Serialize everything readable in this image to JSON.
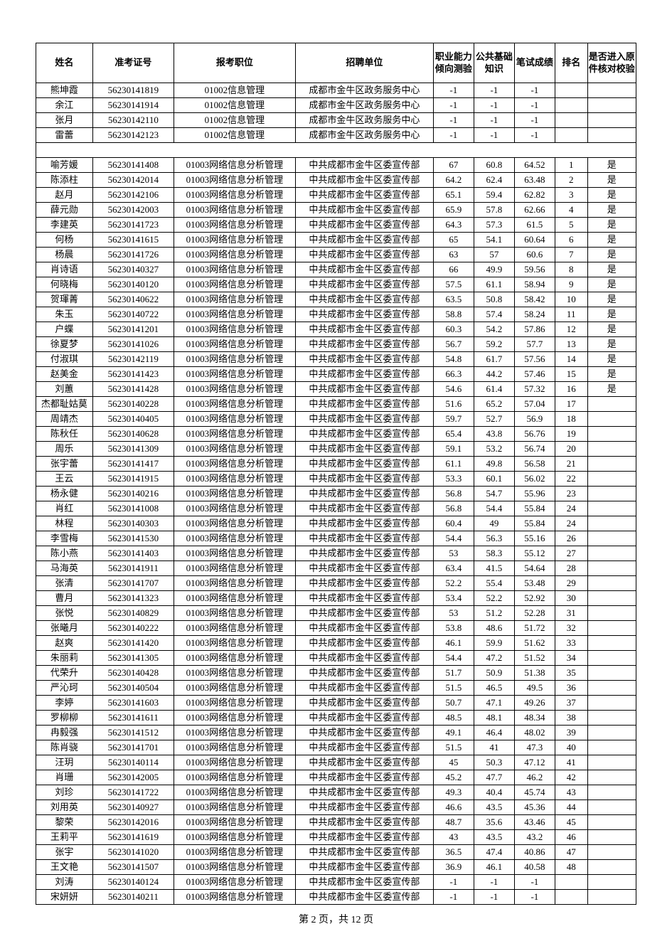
{
  "columns": [
    {
      "key": "name",
      "label": "姓名",
      "cls": "col-name"
    },
    {
      "key": "id",
      "label": "准考证号",
      "cls": "col-id"
    },
    {
      "key": "pos",
      "label": "报考职位",
      "cls": "col-pos"
    },
    {
      "key": "unit",
      "label": "招聘单位",
      "cls": "col-unit"
    },
    {
      "key": "s1",
      "label": "职业能力倾向测验",
      "cls": "col-s1"
    },
    {
      "key": "s2",
      "label": "公共基础知识",
      "cls": "col-s2"
    },
    {
      "key": "s3",
      "label": "笔试成绩",
      "cls": "col-s3"
    },
    {
      "key": "rank",
      "label": "排名",
      "cls": "col-rank"
    },
    {
      "key": "pass",
      "label": "是否进入原件核对校验",
      "cls": "col-pass"
    }
  ],
  "rows": [
    {
      "name": "熊坤霞",
      "id": "56230141819",
      "pos": "01002信息管理",
      "unit": "成都市金牛区政务服务中心",
      "s1": "-1",
      "s2": "-1",
      "s3": "-1",
      "rank": "",
      "pass": ""
    },
    {
      "name": "余江",
      "id": "56230141914",
      "pos": "01002信息管理",
      "unit": "成都市金牛区政务服务中心",
      "s1": "-1",
      "s2": "-1",
      "s3": "-1",
      "rank": "",
      "pass": ""
    },
    {
      "name": "张月",
      "id": "56230142110",
      "pos": "01002信息管理",
      "unit": "成都市金牛区政务服务中心",
      "s1": "-1",
      "s2": "-1",
      "s3": "-1",
      "rank": "",
      "pass": ""
    },
    {
      "name": "雷蕾",
      "id": "56230142123",
      "pos": "01002信息管理",
      "unit": "成都市金牛区政务服务中心",
      "s1": "-1",
      "s2": "-1",
      "s3": "-1",
      "rank": "",
      "pass": ""
    },
    {
      "blank": true
    },
    {
      "name": "喻芳媛",
      "id": "56230141408",
      "pos": "01003网络信息分析管理",
      "unit": "中共成都市金牛区委宣传部",
      "s1": "67",
      "s2": "60.8",
      "s3": "64.52",
      "rank": "1",
      "pass": "是"
    },
    {
      "name": "陈添柱",
      "id": "56230142014",
      "pos": "01003网络信息分析管理",
      "unit": "中共成都市金牛区委宣传部",
      "s1": "64.2",
      "s2": "62.4",
      "s3": "63.48",
      "rank": "2",
      "pass": "是"
    },
    {
      "name": "赵月",
      "id": "56230142106",
      "pos": "01003网络信息分析管理",
      "unit": "中共成都市金牛区委宣传部",
      "s1": "65.1",
      "s2": "59.4",
      "s3": "62.82",
      "rank": "3",
      "pass": "是"
    },
    {
      "name": "薛元勋",
      "id": "56230142003",
      "pos": "01003网络信息分析管理",
      "unit": "中共成都市金牛区委宣传部",
      "s1": "65.9",
      "s2": "57.8",
      "s3": "62.66",
      "rank": "4",
      "pass": "是"
    },
    {
      "name": "李建英",
      "id": "56230141723",
      "pos": "01003网络信息分析管理",
      "unit": "中共成都市金牛区委宣传部",
      "s1": "64.3",
      "s2": "57.3",
      "s3": "61.5",
      "rank": "5",
      "pass": "是"
    },
    {
      "name": "何杨",
      "id": "56230141615",
      "pos": "01003网络信息分析管理",
      "unit": "中共成都市金牛区委宣传部",
      "s1": "65",
      "s2": "54.1",
      "s3": "60.64",
      "rank": "6",
      "pass": "是"
    },
    {
      "name": "杨晨",
      "id": "56230141726",
      "pos": "01003网络信息分析管理",
      "unit": "中共成都市金牛区委宣传部",
      "s1": "63",
      "s2": "57",
      "s3": "60.6",
      "rank": "7",
      "pass": "是"
    },
    {
      "name": "肖诗语",
      "id": "56230140327",
      "pos": "01003网络信息分析管理",
      "unit": "中共成都市金牛区委宣传部",
      "s1": "66",
      "s2": "49.9",
      "s3": "59.56",
      "rank": "8",
      "pass": "是"
    },
    {
      "name": "何晓梅",
      "id": "56230140120",
      "pos": "01003网络信息分析管理",
      "unit": "中共成都市金牛区委宣传部",
      "s1": "57.5",
      "s2": "61.1",
      "s3": "58.94",
      "rank": "9",
      "pass": "是"
    },
    {
      "name": "贺琿菁",
      "id": "56230140622",
      "pos": "01003网络信息分析管理",
      "unit": "中共成都市金牛区委宣传部",
      "s1": "63.5",
      "s2": "50.8",
      "s3": "58.42",
      "rank": "10",
      "pass": "是"
    },
    {
      "name": "朱玉",
      "id": "56230140722",
      "pos": "01003网络信息分析管理",
      "unit": "中共成都市金牛区委宣传部",
      "s1": "58.8",
      "s2": "57.4",
      "s3": "58.24",
      "rank": "11",
      "pass": "是"
    },
    {
      "name": "户蝶",
      "id": "56230141201",
      "pos": "01003网络信息分析管理",
      "unit": "中共成都市金牛区委宣传部",
      "s1": "60.3",
      "s2": "54.2",
      "s3": "57.86",
      "rank": "12",
      "pass": "是"
    },
    {
      "name": "徐夏梦",
      "id": "56230141026",
      "pos": "01003网络信息分析管理",
      "unit": "中共成都市金牛区委宣传部",
      "s1": "56.7",
      "s2": "59.2",
      "s3": "57.7",
      "rank": "13",
      "pass": "是"
    },
    {
      "name": "付淑琪",
      "id": "56230142119",
      "pos": "01003网络信息分析管理",
      "unit": "中共成都市金牛区委宣传部",
      "s1": "54.8",
      "s2": "61.7",
      "s3": "57.56",
      "rank": "14",
      "pass": "是"
    },
    {
      "name": "赵美金",
      "id": "56230141423",
      "pos": "01003网络信息分析管理",
      "unit": "中共成都市金牛区委宣传部",
      "s1": "66.3",
      "s2": "44.2",
      "s3": "57.46",
      "rank": "15",
      "pass": "是"
    },
    {
      "name": "刘蕙",
      "id": "56230141428",
      "pos": "01003网络信息分析管理",
      "unit": "中共成都市金牛区委宣传部",
      "s1": "54.6",
      "s2": "61.4",
      "s3": "57.32",
      "rank": "16",
      "pass": "是"
    },
    {
      "name": "杰都耻姑莫",
      "id": "56230140228",
      "pos": "01003网络信息分析管理",
      "unit": "中共成都市金牛区委宣传部",
      "s1": "51.6",
      "s2": "65.2",
      "s3": "57.04",
      "rank": "17",
      "pass": ""
    },
    {
      "name": "周靖杰",
      "id": "56230140405",
      "pos": "01003网络信息分析管理",
      "unit": "中共成都市金牛区委宣传部",
      "s1": "59.7",
      "s2": "52.7",
      "s3": "56.9",
      "rank": "18",
      "pass": ""
    },
    {
      "name": "陈秋任",
      "id": "56230140628",
      "pos": "01003网络信息分析管理",
      "unit": "中共成都市金牛区委宣传部",
      "s1": "65.4",
      "s2": "43.8",
      "s3": "56.76",
      "rank": "19",
      "pass": ""
    },
    {
      "name": "周乐",
      "id": "56230141309",
      "pos": "01003网络信息分析管理",
      "unit": "中共成都市金牛区委宣传部",
      "s1": "59.1",
      "s2": "53.2",
      "s3": "56.74",
      "rank": "20",
      "pass": ""
    },
    {
      "name": "张宇蕾",
      "id": "56230141417",
      "pos": "01003网络信息分析管理",
      "unit": "中共成都市金牛区委宣传部",
      "s1": "61.1",
      "s2": "49.8",
      "s3": "56.58",
      "rank": "21",
      "pass": ""
    },
    {
      "name": "王云",
      "id": "56230141915",
      "pos": "01003网络信息分析管理",
      "unit": "中共成都市金牛区委宣传部",
      "s1": "53.3",
      "s2": "60.1",
      "s3": "56.02",
      "rank": "22",
      "pass": ""
    },
    {
      "name": "杨永健",
      "id": "56230140216",
      "pos": "01003网络信息分析管理",
      "unit": "中共成都市金牛区委宣传部",
      "s1": "56.8",
      "s2": "54.7",
      "s3": "55.96",
      "rank": "23",
      "pass": ""
    },
    {
      "name": "肖红",
      "id": "56230141008",
      "pos": "01003网络信息分析管理",
      "unit": "中共成都市金牛区委宣传部",
      "s1": "56.8",
      "s2": "54.4",
      "s3": "55.84",
      "rank": "24",
      "pass": ""
    },
    {
      "name": "林程",
      "id": "56230140303",
      "pos": "01003网络信息分析管理",
      "unit": "中共成都市金牛区委宣传部",
      "s1": "60.4",
      "s2": "49",
      "s3": "55.84",
      "rank": "24",
      "pass": ""
    },
    {
      "name": "李雪梅",
      "id": "56230141530",
      "pos": "01003网络信息分析管理",
      "unit": "中共成都市金牛区委宣传部",
      "s1": "54.4",
      "s2": "56.3",
      "s3": "55.16",
      "rank": "26",
      "pass": ""
    },
    {
      "name": "陈小燕",
      "id": "56230141403",
      "pos": "01003网络信息分析管理",
      "unit": "中共成都市金牛区委宣传部",
      "s1": "53",
      "s2": "58.3",
      "s3": "55.12",
      "rank": "27",
      "pass": ""
    },
    {
      "name": "马海英",
      "id": "56230141911",
      "pos": "01003网络信息分析管理",
      "unit": "中共成都市金牛区委宣传部",
      "s1": "63.4",
      "s2": "41.5",
      "s3": "54.64",
      "rank": "28",
      "pass": ""
    },
    {
      "name": "张清",
      "id": "56230141707",
      "pos": "01003网络信息分析管理",
      "unit": "中共成都市金牛区委宣传部",
      "s1": "52.2",
      "s2": "55.4",
      "s3": "53.48",
      "rank": "29",
      "pass": ""
    },
    {
      "name": "曹月",
      "id": "56230141323",
      "pos": "01003网络信息分析管理",
      "unit": "中共成都市金牛区委宣传部",
      "s1": "53.4",
      "s2": "52.2",
      "s3": "52.92",
      "rank": "30",
      "pass": ""
    },
    {
      "name": "张悦",
      "id": "56230140829",
      "pos": "01003网络信息分析管理",
      "unit": "中共成都市金牛区委宣传部",
      "s1": "53",
      "s2": "51.2",
      "s3": "52.28",
      "rank": "31",
      "pass": ""
    },
    {
      "name": "张曦月",
      "id": "56230140222",
      "pos": "01003网络信息分析管理",
      "unit": "中共成都市金牛区委宣传部",
      "s1": "53.8",
      "s2": "48.6",
      "s3": "51.72",
      "rank": "32",
      "pass": ""
    },
    {
      "name": "赵爽",
      "id": "56230141420",
      "pos": "01003网络信息分析管理",
      "unit": "中共成都市金牛区委宣传部",
      "s1": "46.1",
      "s2": "59.9",
      "s3": "51.62",
      "rank": "33",
      "pass": ""
    },
    {
      "name": "朱丽莉",
      "id": "56230141305",
      "pos": "01003网络信息分析管理",
      "unit": "中共成都市金牛区委宣传部",
      "s1": "54.4",
      "s2": "47.2",
      "s3": "51.52",
      "rank": "34",
      "pass": ""
    },
    {
      "name": "代荣升",
      "id": "56230140428",
      "pos": "01003网络信息分析管理",
      "unit": "中共成都市金牛区委宣传部",
      "s1": "51.7",
      "s2": "50.9",
      "s3": "51.38",
      "rank": "35",
      "pass": ""
    },
    {
      "name": "严沁珂",
      "id": "56230140504",
      "pos": "01003网络信息分析管理",
      "unit": "中共成都市金牛区委宣传部",
      "s1": "51.5",
      "s2": "46.5",
      "s3": "49.5",
      "rank": "36",
      "pass": ""
    },
    {
      "name": "李婷",
      "id": "56230141603",
      "pos": "01003网络信息分析管理",
      "unit": "中共成都市金牛区委宣传部",
      "s1": "50.7",
      "s2": "47.1",
      "s3": "49.26",
      "rank": "37",
      "pass": ""
    },
    {
      "name": "罗柳柳",
      "id": "56230141611",
      "pos": "01003网络信息分析管理",
      "unit": "中共成都市金牛区委宣传部",
      "s1": "48.5",
      "s2": "48.1",
      "s3": "48.34",
      "rank": "38",
      "pass": ""
    },
    {
      "name": "冉毅强",
      "id": "56230141512",
      "pos": "01003网络信息分析管理",
      "unit": "中共成都市金牛区委宣传部",
      "s1": "49.1",
      "s2": "46.4",
      "s3": "48.02",
      "rank": "39",
      "pass": ""
    },
    {
      "name": "陈肖骁",
      "id": "56230141701",
      "pos": "01003网络信息分析管理",
      "unit": "中共成都市金牛区委宣传部",
      "s1": "51.5",
      "s2": "41",
      "s3": "47.3",
      "rank": "40",
      "pass": ""
    },
    {
      "name": "汪玥",
      "id": "56230140114",
      "pos": "01003网络信息分析管理",
      "unit": "中共成都市金牛区委宣传部",
      "s1": "45",
      "s2": "50.3",
      "s3": "47.12",
      "rank": "41",
      "pass": ""
    },
    {
      "name": "肖珊",
      "id": "56230142005",
      "pos": "01003网络信息分析管理",
      "unit": "中共成都市金牛区委宣传部",
      "s1": "45.2",
      "s2": "47.7",
      "s3": "46.2",
      "rank": "42",
      "pass": ""
    },
    {
      "name": "刘珍",
      "id": "56230141722",
      "pos": "01003网络信息分析管理",
      "unit": "中共成都市金牛区委宣传部",
      "s1": "49.3",
      "s2": "40.4",
      "s3": "45.74",
      "rank": "43",
      "pass": ""
    },
    {
      "name": "刘用英",
      "id": "56230140927",
      "pos": "01003网络信息分析管理",
      "unit": "中共成都市金牛区委宣传部",
      "s1": "46.6",
      "s2": "43.5",
      "s3": "45.36",
      "rank": "44",
      "pass": ""
    },
    {
      "name": "黎荣",
      "id": "56230142016",
      "pos": "01003网络信息分析管理",
      "unit": "中共成都市金牛区委宣传部",
      "s1": "48.7",
      "s2": "35.6",
      "s3": "43.46",
      "rank": "45",
      "pass": ""
    },
    {
      "name": "王莉平",
      "id": "56230141619",
      "pos": "01003网络信息分析管理",
      "unit": "中共成都市金牛区委宣传部",
      "s1": "43",
      "s2": "43.5",
      "s3": "43.2",
      "rank": "46",
      "pass": ""
    },
    {
      "name": "张宇",
      "id": "56230141020",
      "pos": "01003网络信息分析管理",
      "unit": "中共成都市金牛区委宣传部",
      "s1": "36.5",
      "s2": "47.4",
      "s3": "40.86",
      "rank": "47",
      "pass": ""
    },
    {
      "name": "王文艳",
      "id": "56230141507",
      "pos": "01003网络信息分析管理",
      "unit": "中共成都市金牛区委宣传部",
      "s1": "36.9",
      "s2": "46.1",
      "s3": "40.58",
      "rank": "48",
      "pass": ""
    },
    {
      "name": "刘涛",
      "id": "56230140124",
      "pos": "01003网络信息分析管理",
      "unit": "中共成都市金牛区委宣传部",
      "s1": "-1",
      "s2": "-1",
      "s3": "-1",
      "rank": "",
      "pass": ""
    },
    {
      "name": "宋妍妍",
      "id": "56230140211",
      "pos": "01003网络信息分析管理",
      "unit": "中共成都市金牛区委宣传部",
      "s1": "-1",
      "s2": "-1",
      "s3": "-1",
      "rank": "",
      "pass": ""
    }
  ],
  "footer": "第 2 页，共 12 页"
}
